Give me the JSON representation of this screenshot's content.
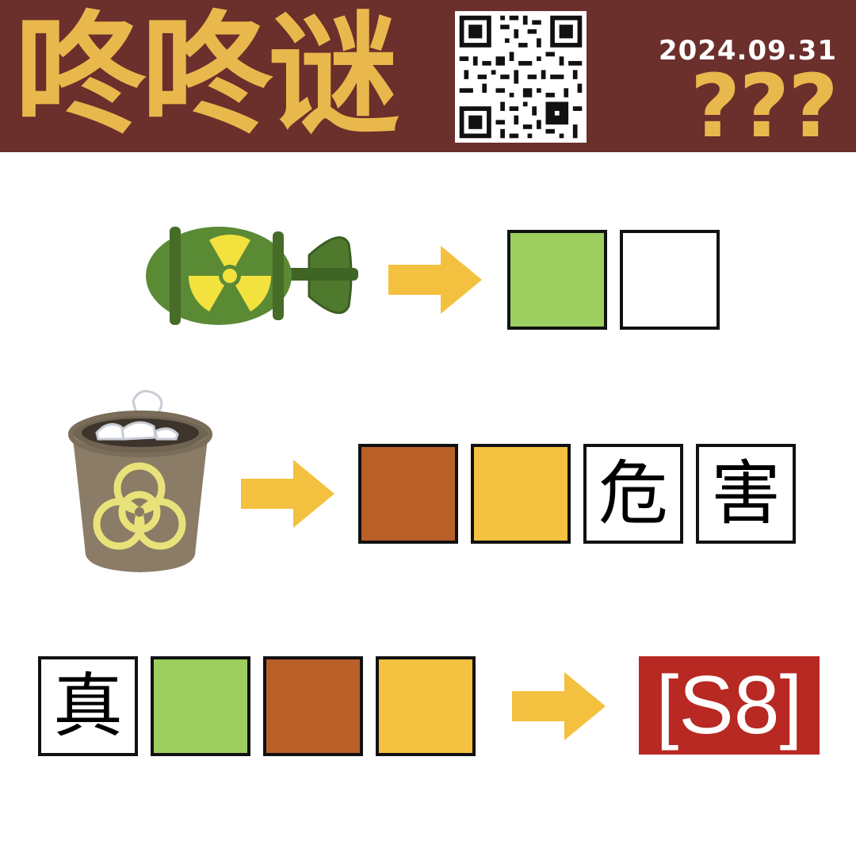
{
  "header": {
    "title": "咚咚谜",
    "date": "2024.09.31",
    "question_marks": "???"
  },
  "colors": {
    "header_bg": "#6b2f2c",
    "title_gold": "#e9b84c",
    "arrow": "#f4c03f",
    "green": "#9ccf5f",
    "brown": "#b95f28",
    "yellow": "#f4c140",
    "answer_red": "#b72922"
  },
  "icons": [
    "qr-code-icon",
    "nuclear-bomb-icon",
    "biohazard-trash-can-icon",
    "arrow-right-icon"
  ],
  "puzzle": {
    "row1": {
      "boxes": [
        "",
        ""
      ]
    },
    "row2": {
      "boxes": [
        "",
        "",
        "危",
        "害"
      ]
    },
    "row3": {
      "boxes": [
        "真",
        "",
        "",
        ""
      ]
    },
    "answer": "[S8]"
  }
}
